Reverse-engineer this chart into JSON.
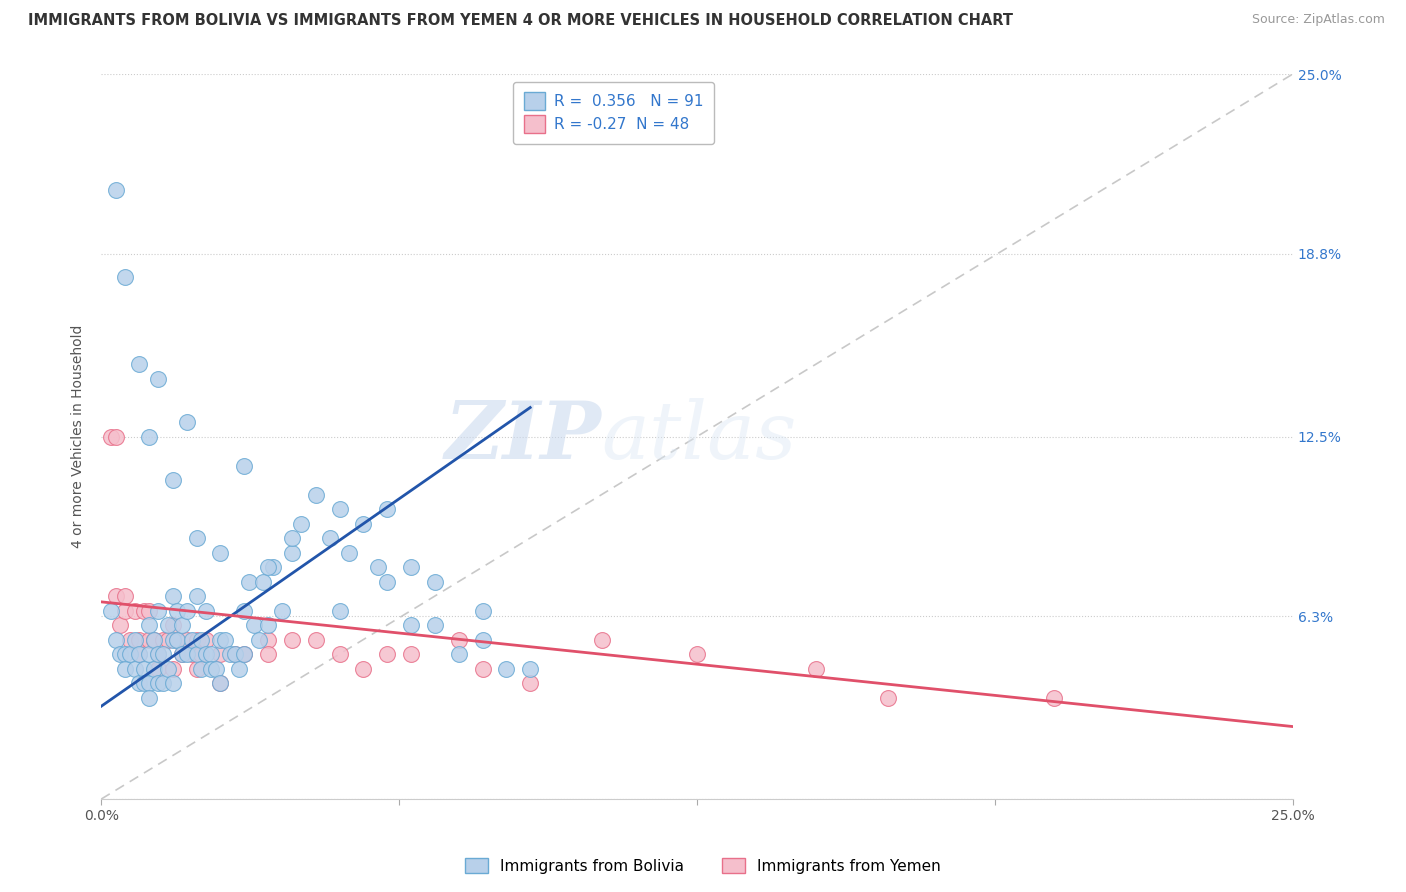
{
  "title": "IMMIGRANTS FROM BOLIVIA VS IMMIGRANTS FROM YEMEN 4 OR MORE VEHICLES IN HOUSEHOLD CORRELATION CHART",
  "source": "Source: ZipAtlas.com",
  "ylabel": "4 or more Vehicles in Household",
  "xlim": [
    0.0,
    25.0
  ],
  "ylim": [
    0.0,
    25.0
  ],
  "yticks": [
    0.0,
    6.3,
    12.5,
    18.8,
    25.0
  ],
  "ytick_labels": [
    "",
    "6.3%",
    "12.5%",
    "18.8%",
    "25.0%"
  ],
  "xtick_positions": [
    0.0,
    6.25,
    12.5,
    18.75,
    25.0
  ],
  "xtick_labels": [
    "0.0%",
    "",
    "",
    "",
    "25.0%"
  ],
  "bolivia_color": "#b8d0ea",
  "bolivia_edge_color": "#6aaad4",
  "yemen_color": "#f5bfcc",
  "yemen_edge_color": "#e8708a",
  "bolivia_line_color": "#2255aa",
  "yemen_line_color": "#e0506a",
  "diagonal_color": "#bbbbbb",
  "R_bolivia": 0.356,
  "N_bolivia": 91,
  "R_yemen": -0.27,
  "N_yemen": 48,
  "legend_label_bolivia": "Immigrants from Bolivia",
  "legend_label_yemen": "Immigrants from Yemen",
  "watermark_zip": "ZIP",
  "watermark_atlas": "atlas",
  "background_color": "#ffffff",
  "bolivia_x": [
    0.2,
    0.3,
    0.4,
    0.5,
    0.5,
    0.6,
    0.7,
    0.7,
    0.8,
    0.8,
    0.9,
    0.9,
    1.0,
    1.0,
    1.0,
    1.0,
    1.1,
    1.1,
    1.2,
    1.2,
    1.2,
    1.3,
    1.3,
    1.4,
    1.4,
    1.5,
    1.5,
    1.5,
    1.6,
    1.6,
    1.7,
    1.7,
    1.8,
    1.8,
    1.9,
    2.0,
    2.0,
    2.1,
    2.1,
    2.2,
    2.2,
    2.3,
    2.3,
    2.4,
    2.5,
    2.5,
    2.6,
    2.7,
    2.8,
    2.9,
    3.0,
    3.0,
    3.1,
    3.2,
    3.3,
    3.4,
    3.5,
    3.6,
    3.8,
    4.0,
    4.2,
    4.5,
    4.8,
    5.0,
    5.2,
    5.5,
    5.8,
    6.0,
    6.5,
    7.0,
    7.5,
    8.0,
    8.5,
    0.3,
    0.5,
    0.8,
    1.0,
    1.2,
    1.5,
    1.8,
    2.0,
    2.5,
    3.0,
    3.5,
    4.0,
    5.0,
    6.0,
    6.5,
    7.0,
    8.0,
    9.0
  ],
  "bolivia_y": [
    6.5,
    5.5,
    5.0,
    5.0,
    4.5,
    5.0,
    4.5,
    5.5,
    5.0,
    4.0,
    4.5,
    4.0,
    4.0,
    5.0,
    6.0,
    3.5,
    4.5,
    5.5,
    4.0,
    5.0,
    6.5,
    4.0,
    5.0,
    4.5,
    6.0,
    5.5,
    7.0,
    4.0,
    5.5,
    6.5,
    5.0,
    6.0,
    5.0,
    6.5,
    5.5,
    5.0,
    7.0,
    5.5,
    4.5,
    5.0,
    6.5,
    5.0,
    4.5,
    4.5,
    5.5,
    4.0,
    5.5,
    5.0,
    5.0,
    4.5,
    6.5,
    5.0,
    7.5,
    6.0,
    5.5,
    7.5,
    6.0,
    8.0,
    6.5,
    8.5,
    9.5,
    10.5,
    9.0,
    10.0,
    8.5,
    9.5,
    8.0,
    10.0,
    6.0,
    7.5,
    5.0,
    6.5,
    4.5,
    21.0,
    18.0,
    15.0,
    12.5,
    14.5,
    11.0,
    13.0,
    9.0,
    8.5,
    11.5,
    8.0,
    9.0,
    6.5,
    7.5,
    8.0,
    6.0,
    5.5,
    4.5
  ],
  "yemen_x": [
    0.2,
    0.3,
    0.4,
    0.5,
    0.6,
    0.7,
    0.8,
    0.9,
    1.0,
    1.0,
    1.1,
    1.2,
    1.3,
    1.4,
    1.5,
    1.6,
    1.7,
    1.8,
    1.9,
    2.0,
    2.1,
    2.2,
    2.5,
    2.8,
    3.0,
    3.5,
    4.0,
    4.5,
    5.0,
    5.5,
    6.0,
    6.5,
    7.5,
    8.0,
    9.0,
    10.5,
    12.5,
    15.0,
    16.5,
    20.0,
    0.3,
    0.5,
    0.8,
    1.2,
    1.5,
    2.0,
    2.5,
    3.5
  ],
  "yemen_y": [
    12.5,
    12.5,
    6.0,
    6.5,
    5.5,
    6.5,
    5.5,
    6.5,
    6.5,
    5.5,
    5.5,
    5.0,
    5.5,
    5.5,
    6.0,
    5.5,
    5.0,
    5.5,
    5.0,
    5.5,
    5.0,
    5.5,
    5.0,
    5.0,
    5.0,
    5.5,
    5.5,
    5.5,
    5.0,
    4.5,
    5.0,
    5.0,
    5.5,
    4.5,
    4.0,
    5.5,
    5.0,
    4.5,
    3.5,
    3.5,
    7.0,
    7.0,
    5.0,
    4.5,
    4.5,
    4.5,
    4.0,
    5.0
  ],
  "bolivia_reg_x0": 0.0,
  "bolivia_reg_y0": 3.2,
  "bolivia_reg_x1": 9.0,
  "bolivia_reg_y1": 13.5,
  "yemen_reg_x0": 0.0,
  "yemen_reg_y0": 6.8,
  "yemen_reg_x1": 25.0,
  "yemen_reg_y1": 2.5
}
